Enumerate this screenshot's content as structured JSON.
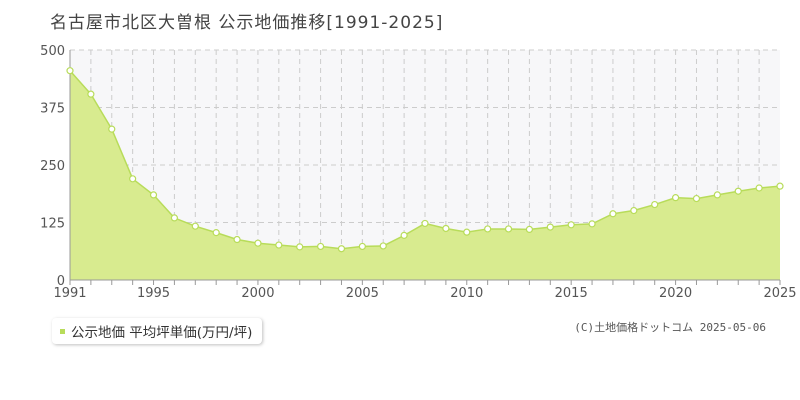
{
  "chart_data": {
    "type": "area",
    "title": "名古屋市北区大曽根 公示地価推移[1991-2025]",
    "xlabel": "",
    "ylabel": "",
    "x": [
      1991,
      1992,
      1993,
      1994,
      1995,
      1996,
      1997,
      1998,
      1999,
      2000,
      2001,
      2002,
      2003,
      2004,
      2005,
      2006,
      2007,
      2008,
      2009,
      2010,
      2011,
      2012,
      2013,
      2014,
      2015,
      2016,
      2017,
      2018,
      2019,
      2020,
      2021,
      2022,
      2023,
      2024,
      2025
    ],
    "series": [
      {
        "name": "公示地価 平均坪単価(万円/坪)",
        "values": [
          455,
          404,
          328,
          220,
          185,
          135,
          117,
          103,
          88,
          80,
          76,
          72,
          73,
          68,
          73,
          74,
          97,
          123,
          112,
          104,
          111,
          111,
          110,
          115,
          120,
          122,
          144,
          151,
          164,
          179,
          177,
          185,
          193,
          200,
          204
        ]
      }
    ],
    "ylim": [
      0,
      500
    ],
    "yticks": [
      "0",
      "125",
      "250",
      "375",
      "500"
    ],
    "xticks": [
      "1991",
      "1995",
      "2000",
      "2005",
      "2010",
      "2015",
      "2020",
      "2025"
    ],
    "grid": true,
    "legend_position": "bottom-left",
    "colors": {
      "area_fill": "#d8eb8f",
      "line": "#b8dc5a",
      "point_fill": "#ffffff",
      "plot_background": "#f7f7f9",
      "grid": "#cccccc",
      "axis": "#999999"
    }
  },
  "copyright": "(C)土地価格ドットコム 2025-05-06"
}
